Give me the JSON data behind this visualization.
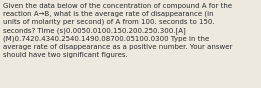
{
  "lines": [
    "Given the data below of the concentration of compound A for the",
    "reaction A→B, what is the average rate of disappearance (in",
    "units of molarity per second) of A from 100. seconds to 150.",
    "seconds? Time (s)0.0050.0100.150.200.250.300.[A]",
    "(M)0.7420.4340.2540.1490.08700.05100.0300 Type in the",
    "average rate of disappearance as a positive number. Your answer",
    "should have two significant figures."
  ],
  "bg_color": "#ede9df",
  "font_size": 5.05,
  "text_color": "#2c2c2c",
  "linespacing": 1.38
}
